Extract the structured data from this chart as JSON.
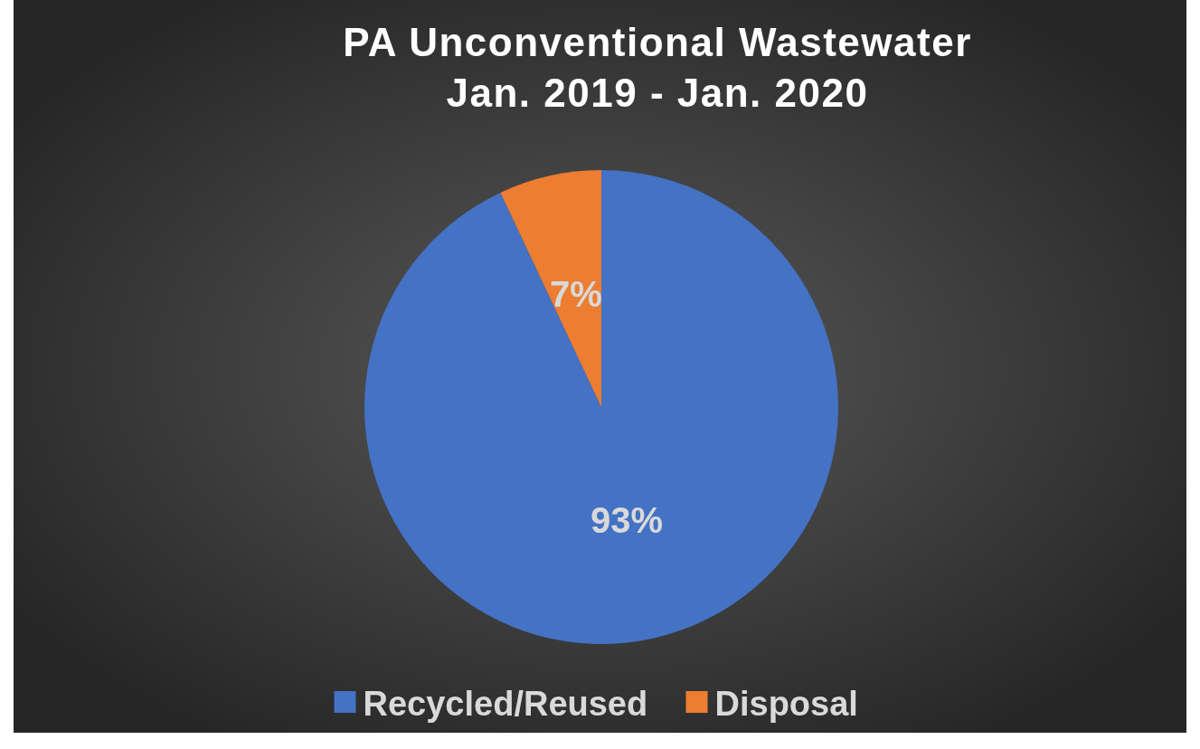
{
  "chart_data": {
    "type": "pie",
    "title": "PA Unconventional Wastewater\nJan. 2019 - Jan. 2020",
    "categories": [
      "Recycled/Reused",
      "Disposal"
    ],
    "values": [
      93,
      7
    ],
    "colors": [
      "#4472c4",
      "#ed7d31"
    ],
    "value_labels": [
      "93%",
      "7%"
    ],
    "legend": "bottom"
  }
}
